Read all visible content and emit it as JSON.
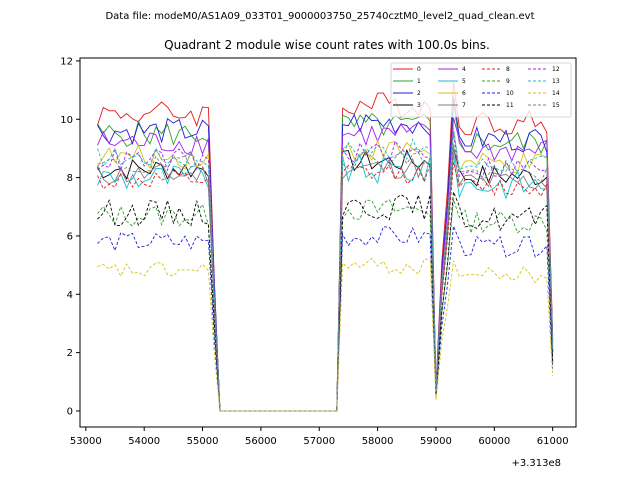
{
  "chart_data": {
    "type": "line",
    "suptitle": "Data file: modeM0/AS1A09_033T01_9000003750_25740cztM0_level2_quad_clean.evt",
    "title": "Quadrant 2 module wise count rates with 100.0s bins.",
    "xlabel": "",
    "ylabel": "",
    "x_offset_label": "+3.313e8",
    "xlim": [
      52900,
      61400
    ],
    "ylim": [
      -0.55,
      12.1
    ],
    "x_ticks": [
      53000,
      54000,
      55000,
      56000,
      57000,
      58000,
      59000,
      60000,
      61000
    ],
    "x_tick_labels": [
      "53000",
      "54000",
      "55000",
      "56000",
      "57000",
      "58000",
      "59000",
      "60000",
      "61000"
    ],
    "y_ticks": [
      0,
      2,
      4,
      6,
      8,
      10,
      12
    ],
    "y_tick_labels": [
      "0",
      "2",
      "4",
      "6",
      "8",
      "10",
      "12"
    ],
    "grid": false,
    "legend": {
      "location": "top-right",
      "columns": 4
    },
    "gaps": [
      {
        "start": 55200,
        "end": 57300,
        "value": 0
      },
      {
        "at": 59000,
        "dip_fraction": 0.08
      }
    ],
    "segments_x": {
      "seg1": [
        53200,
        55300
      ],
      "seg2": [
        57300,
        59000
      ],
      "seg3": [
        59000,
        61000
      ]
    },
    "series": [
      {
        "name": "0",
        "color": "#e41a1c",
        "style": "solid",
        "base": 10.2,
        "amp": 0.45,
        "seed": 1
      },
      {
        "name": "1",
        "color": "#2ca02c",
        "style": "solid",
        "base": 9.5,
        "amp": 0.45,
        "seed": 2
      },
      {
        "name": "2",
        "color": "#1f1fd6",
        "style": "solid",
        "base": 9.6,
        "amp": 0.45,
        "seed": 3
      },
      {
        "name": "3",
        "color": "#000000",
        "style": "solid",
        "base": 8.3,
        "amp": 0.4,
        "seed": 4
      },
      {
        "name": "4",
        "color": "#a020f0",
        "style": "solid",
        "base": 9.2,
        "amp": 0.45,
        "seed": 5
      },
      {
        "name": "5",
        "color": "#17becf",
        "style": "solid",
        "base": 8.0,
        "amp": 0.5,
        "seed": 6
      },
      {
        "name": "6",
        "color": "#d4c21a",
        "style": "solid",
        "base": 8.7,
        "amp": 0.4,
        "seed": 7
      },
      {
        "name": "7",
        "color": "#7f7f7f",
        "style": "solid",
        "base": 8.1,
        "amp": 0.4,
        "seed": 8
      },
      {
        "name": "8",
        "color": "#e41a1c",
        "style": "dashed",
        "base": 7.9,
        "amp": 0.35,
        "seed": 9
      },
      {
        "name": "9",
        "color": "#2ca02c",
        "style": "dashed",
        "base": 6.7,
        "amp": 0.4,
        "seed": 10
      },
      {
        "name": "10",
        "color": "#1f1fd6",
        "style": "dashed",
        "base": 5.8,
        "amp": 0.35,
        "seed": 11
      },
      {
        "name": "11",
        "color": "#000000",
        "style": "dashed",
        "base": 6.8,
        "amp": 0.45,
        "seed": 12
      },
      {
        "name": "12",
        "color": "#a020f0",
        "style": "dashed",
        "base": 8.6,
        "amp": 0.4,
        "seed": 13
      },
      {
        "name": "13",
        "color": "#17becf",
        "style": "dashed",
        "base": 8.7,
        "amp": 0.35,
        "seed": 14
      },
      {
        "name": "14",
        "color": "#d4c21a",
        "style": "dashed",
        "base": 4.8,
        "amp": 0.3,
        "seed": 15
      },
      {
        "name": "15",
        "color": "#7f7f7f",
        "style": "dashed",
        "base": 8.4,
        "amp": 0.35,
        "seed": 16
      }
    ]
  }
}
